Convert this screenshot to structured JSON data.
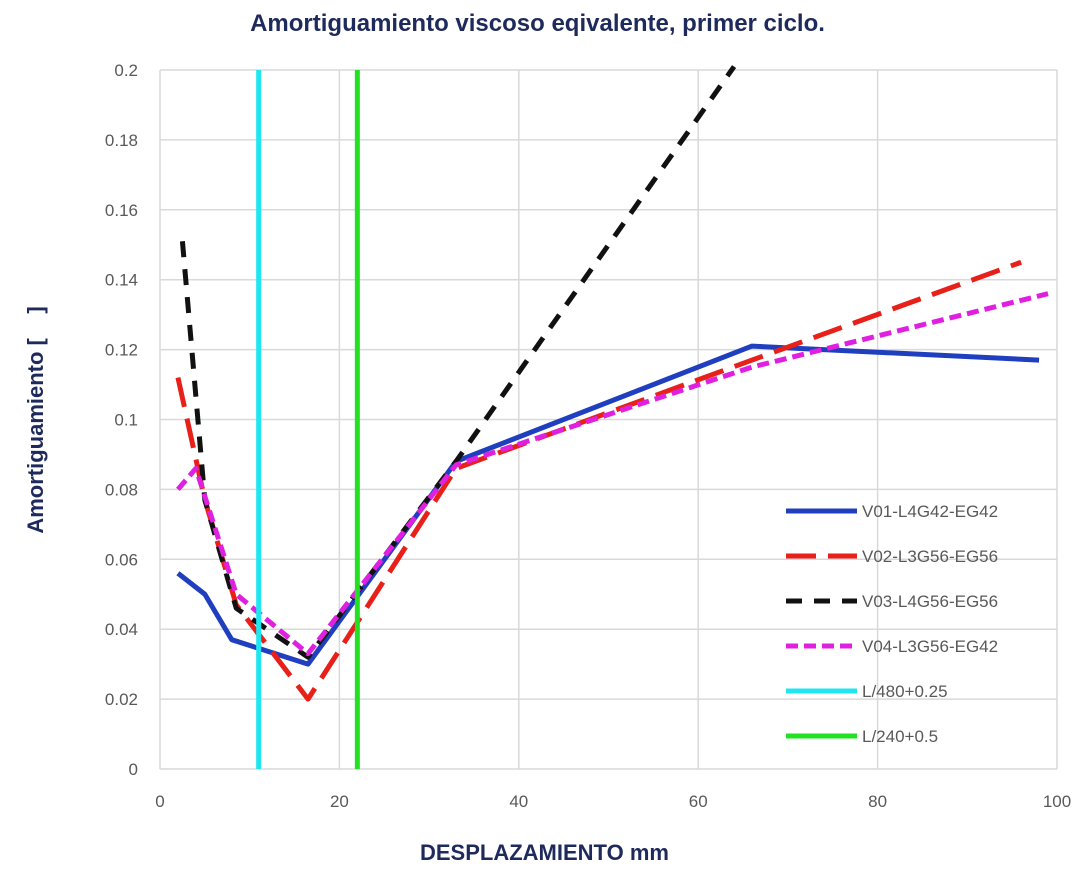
{
  "chart_data": {
    "type": "line",
    "title": "Amortiguamiento viscoso eqivalente, primer ciclo.",
    "xlabel": "DESPLAZAMIENTO mm",
    "ylabel": "Amortiguamiento [    ]",
    "xlim": [
      0,
      100
    ],
    "ylim": [
      0,
      0.2
    ],
    "x_ticks": [
      "0",
      "20",
      "40",
      "60",
      "80",
      "100"
    ],
    "y_ticks": [
      "0",
      "0.02",
      "0.04",
      "0.06",
      "0.08",
      "0.1",
      "0.12",
      "0.14",
      "0.16",
      "0.18",
      "0.2"
    ],
    "grid": "horizontal and vertical",
    "legend_position": "bottom-right",
    "series": [
      {
        "name": "V01-L4G42-EG42",
        "color": "#1f3fbf",
        "style": "solid",
        "points": [
          [
            2,
            0.056
          ],
          [
            5,
            0.05
          ],
          [
            8,
            0.037
          ],
          [
            16.5,
            0.03
          ],
          [
            33,
            0.088
          ],
          [
            66,
            0.121
          ],
          [
            98,
            0.117
          ]
        ]
      },
      {
        "name": "V02-L3G56-EG56",
        "color": "#e8201a",
        "style": "long-dash",
        "points": [
          [
            2,
            0.112
          ],
          [
            5,
            0.077
          ],
          [
            8.5,
            0.047
          ],
          [
            16.5,
            0.02
          ],
          [
            33,
            0.086
          ],
          [
            66,
            0.117
          ],
          [
            96,
            0.145
          ]
        ]
      },
      {
        "name": "V03-L4G56-EG56",
        "color": "#111111",
        "style": "dash",
        "points": [
          [
            2.5,
            0.151
          ],
          [
            5,
            0.077
          ],
          [
            8.5,
            0.046
          ],
          [
            16.5,
            0.032
          ],
          [
            33,
            0.088
          ],
          [
            64,
            0.201
          ]
        ]
      },
      {
        "name": "V04-L3G56-EG42",
        "color": "#e020e0",
        "style": "short-dash",
        "points": [
          [
            2,
            0.08
          ],
          [
            4,
            0.086
          ],
          [
            8.5,
            0.05
          ],
          [
            16.5,
            0.033
          ],
          [
            33,
            0.087
          ],
          [
            66,
            0.115
          ],
          [
            99,
            0.136
          ]
        ]
      },
      {
        "name": "L/480+0.25",
        "color": "#20e6f0",
        "style": "solid-vertical",
        "points": [
          [
            11,
            0
          ],
          [
            11,
            0.2
          ]
        ]
      },
      {
        "name": "L/240+0.5",
        "color": "#22e022",
        "style": "solid-vertical",
        "points": [
          [
            22,
            0
          ],
          [
            22,
            0.2
          ]
        ]
      }
    ]
  }
}
